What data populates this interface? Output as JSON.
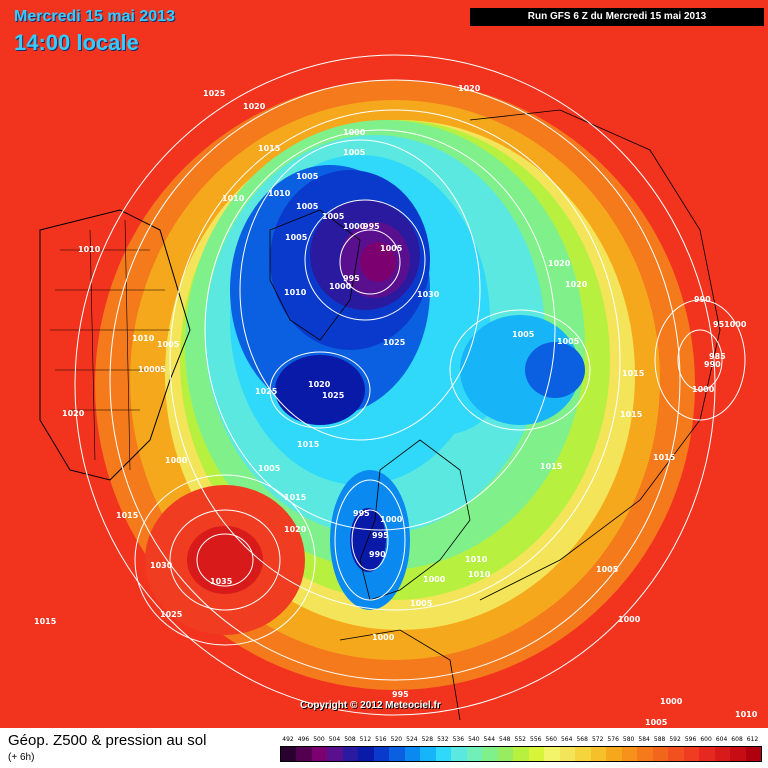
{
  "header": {
    "date": "Mercredi 15 mai 2013",
    "local_time": "14:00 locale",
    "run_info": "Run GFS 6 Z du Mercredi 15 mai 2013"
  },
  "footer": {
    "chart_name": "Géop. Z500 & pression au sol",
    "forecast_step": "(+ 6h)",
    "copyright": "Copyright © 2012 Meteociel.fr"
  },
  "legend": {
    "labels": [
      "492",
      "496",
      "500",
      "504",
      "508",
      "512",
      "516",
      "520",
      "524",
      "528",
      "532",
      "536",
      "540",
      "544",
      "548",
      "552",
      "556",
      "560",
      "564",
      "568",
      "572",
      "576",
      "580",
      "584",
      "588",
      "592",
      "596",
      "600",
      "604",
      "608",
      "612"
    ],
    "colors": [
      "#2a0030",
      "#52004f",
      "#7d0070",
      "#5a0f8f",
      "#2a1a9f",
      "#0a1aa8",
      "#0a3acc",
      "#0a60e0",
      "#0a8af0",
      "#18b4f8",
      "#30d8fa",
      "#5ae8e0",
      "#70f0b8",
      "#80f08a",
      "#98ec60",
      "#b8f040",
      "#d8f438",
      "#f4f46a",
      "#f4e45a",
      "#f6d43e",
      "#f6c02a",
      "#f6a81c",
      "#f6921a",
      "#f47a1c",
      "#f2661c",
      "#f2501e",
      "#f03c20",
      "#e62820",
      "#d81a1a",
      "#c80c14",
      "#b00010"
    ]
  },
  "isobars": [
    "1025",
    "1020",
    "1020",
    "1000",
    "1005",
    "1015",
    "1010",
    "1010",
    "1005",
    "1005",
    "1000",
    "995",
    "1005",
    "1005",
    "995",
    "1000",
    "1030",
    "1010",
    "1010",
    "1005",
    "1025",
    "1020",
    "1020",
    "1005",
    "10005",
    "1025",
    "1020",
    "1025",
    "1020",
    "1005",
    "1010",
    "1005",
    "1015",
    "990",
    "951000",
    "985",
    "990",
    "1000",
    "1015",
    "1015",
    "1000",
    "1015",
    "1015",
    "1005",
    "1015",
    "1015",
    "1020",
    "995",
    "1000",
    "995",
    "990",
    "1030",
    "1035",
    "1025",
    "1015",
    "1010",
    "1010",
    "1000",
    "1005",
    "1005",
    "1000",
    "1000",
    "995",
    "1000",
    "1005",
    "1010"
  ]
}
